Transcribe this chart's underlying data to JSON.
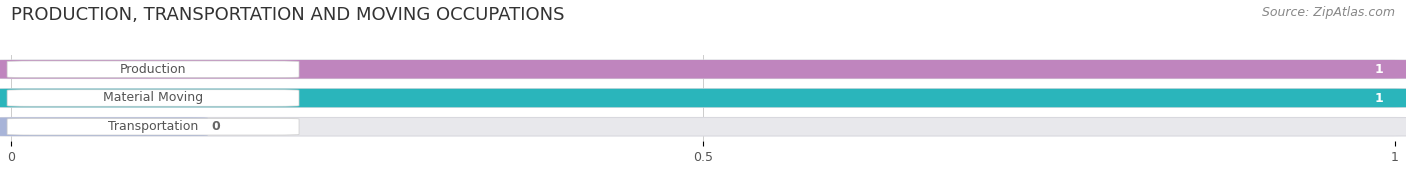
{
  "title": "PRODUCTION, TRANSPORTATION AND MOVING OCCUPATIONS",
  "source": "Source: ZipAtlas.com",
  "categories": [
    "Production",
    "Material Moving",
    "Transportation"
  ],
  "values": [
    1,
    1,
    0
  ],
  "bar_colors": [
    "#bf85be",
    "#2ab5bb",
    "#a8b4d8"
  ],
  "track_color": "#e8e8ec",
  "track_edge_color": "#d8d8de",
  "label_bg_color": "#ffffff",
  "label_text_color": "#555555",
  "value_text_color": "#ffffff",
  "background_color": "#ffffff",
  "xlim": [
    0,
    1
  ],
  "xticks": [
    0,
    0.5,
    1
  ],
  "xtick_labels": [
    "0",
    "0.5",
    "1"
  ],
  "bar_height": 0.62,
  "value_labels": [
    "1",
    "1",
    "0"
  ],
  "zero_bar_width": 0.13,
  "title_fontsize": 13,
  "source_fontsize": 9,
  "label_fontsize": 9,
  "value_fontsize": 9,
  "tick_fontsize": 9
}
